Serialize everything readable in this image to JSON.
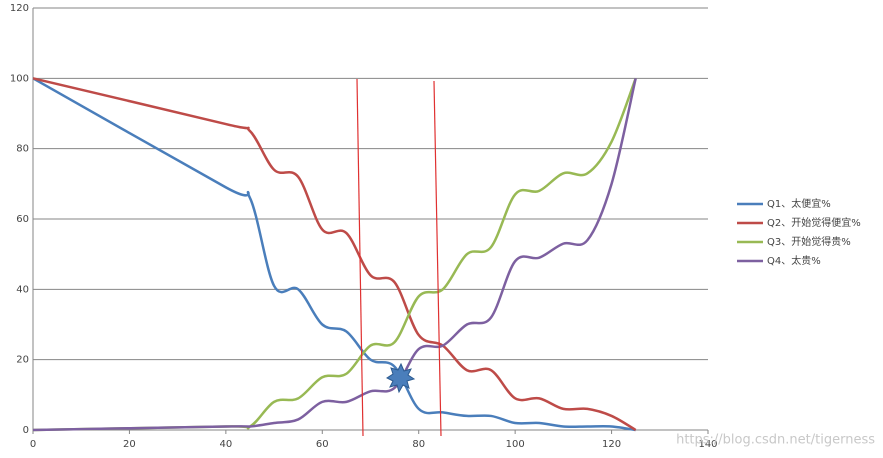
{
  "chart_data": {
    "type": "line",
    "x": [
      0,
      40,
      45,
      50,
      55,
      60,
      65,
      70,
      75,
      80,
      85,
      90,
      95,
      100,
      105,
      110,
      115,
      120,
      125
    ],
    "series": [
      {
        "name": "Q1、太便宜%",
        "color": "#4a7ebb",
        "values": [
          100,
          69,
          66,
          41,
          40,
          30,
          28,
          20,
          18,
          6,
          5,
          4,
          4,
          2,
          2,
          1,
          1,
          1,
          0
        ]
      },
      {
        "name": "Q2、开始觉得便宜%",
        "color": "#be4b48",
        "values": [
          100,
          87,
          85,
          74,
          72,
          57,
          56,
          44,
          42,
          27,
          24,
          17,
          17,
          9,
          9,
          6,
          6,
          4,
          0
        ]
      },
      {
        "name": "Q3、开始觉得贵%",
        "color": "#98b954",
        "values": [
          0,
          1,
          1,
          8,
          9,
          15,
          16,
          24,
          25,
          38,
          40,
          50,
          52,
          67,
          68,
          73,
          73,
          82,
          100
        ]
      },
      {
        "name": "Q4、太贵%",
        "color": "#7d60a0",
        "values": [
          0,
          1,
          1,
          2,
          3,
          8,
          8,
          11,
          12,
          23,
          24,
          30,
          32,
          48,
          49,
          53,
          54,
          70,
          100
        ]
      }
    ],
    "xlim": [
      0,
      140
    ],
    "xticks": [
      0,
      20,
      40,
      60,
      80,
      100,
      120,
      140
    ],
    "ylim": [
      0,
      120
    ],
    "yticks": [
      0,
      20,
      40,
      60,
      80,
      100,
      120
    ],
    "grid": true,
    "legend": "right",
    "watermark": "https://blog.csdn.net/tigerness"
  }
}
